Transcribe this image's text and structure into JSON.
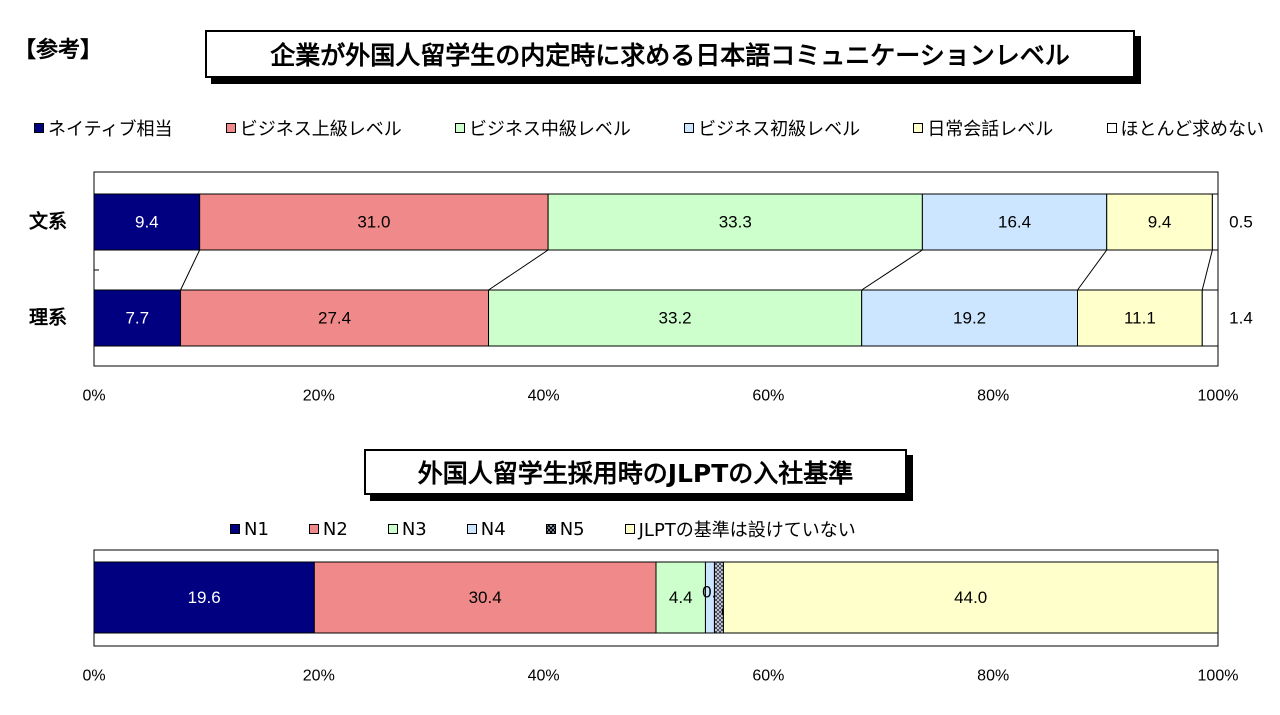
{
  "reference_label": "【参考】",
  "chart_data": [
    {
      "type": "bar",
      "orientation": "horizontal",
      "stacked": "percent",
      "title": "企業が外国人留学生の内定時に求める日本語コミュニケーションレベル",
      "categories": [
        "文系",
        "理系"
      ],
      "series": [
        {
          "name": "ネイティブ相当",
          "color": "#000080",
          "values": [
            9.4,
            7.7
          ],
          "labels": [
            "9.4",
            "7.7"
          ]
        },
        {
          "name": "ビジネス上級レベル",
          "color": "#f08a8a",
          "values": [
            31.0,
            27.4
          ],
          "labels": [
            "31.0",
            "27.4"
          ]
        },
        {
          "name": "ビジネス中級レベル",
          "color": "#ccffcc",
          "values": [
            33.3,
            33.2
          ],
          "labels": [
            "33.3",
            "33.2"
          ]
        },
        {
          "name": "ビジネス初級レベル",
          "color": "#cce6ff",
          "values": [
            16.4,
            19.2
          ],
          "labels": [
            "16.4",
            "19.2"
          ]
        },
        {
          "name": "日常会話レベル",
          "color": "#ffffcc",
          "values": [
            9.4,
            11.1
          ],
          "labels": [
            "9.4",
            "11.1"
          ]
        },
        {
          "name": "ほとんど求めない",
          "color": "#ffffff",
          "values": [
            0.5,
            1.4
          ],
          "labels": [
            "0.5",
            "1.4"
          ]
        }
      ],
      "x_ticks": [
        "0%",
        "20%",
        "40%",
        "60%",
        "80%",
        "100%"
      ],
      "xlim": [
        0,
        100
      ],
      "legend_position": "top",
      "series_lines": true
    },
    {
      "type": "bar",
      "orientation": "horizontal",
      "stacked": "percent",
      "title": "外国人留学生採用時のJLPTの入社基準",
      "categories": [
        ""
      ],
      "series": [
        {
          "name": "N1",
          "color": "#000080",
          "values": [
            19.6
          ],
          "labels": [
            "19.6"
          ]
        },
        {
          "name": "N2",
          "color": "#f08a8a",
          "values": [
            30.4
          ],
          "labels": [
            "30.4"
          ]
        },
        {
          "name": "N3",
          "color": "#ccffcc",
          "values": [
            4.4
          ],
          "labels": [
            "4.4"
          ]
        },
        {
          "name": "N4",
          "color": "#cce6ff",
          "values": [
            0.8
          ],
          "labels": [
            "0.8"
          ]
        },
        {
          "name": "N5",
          "color": "#99aabb",
          "pattern": "crosshatch",
          "values": [
            0.8
          ],
          "labels": [
            "0.8"
          ]
        },
        {
          "name": "JLPTの基準は設けていない",
          "color": "#ffffcc",
          "values": [
            44.0
          ],
          "labels": [
            "44.0"
          ]
        }
      ],
      "x_ticks": [
        "0%",
        "20%",
        "40%",
        "60%",
        "80%",
        "100%"
      ],
      "xlim": [
        0,
        100
      ],
      "legend_position": "top"
    }
  ]
}
